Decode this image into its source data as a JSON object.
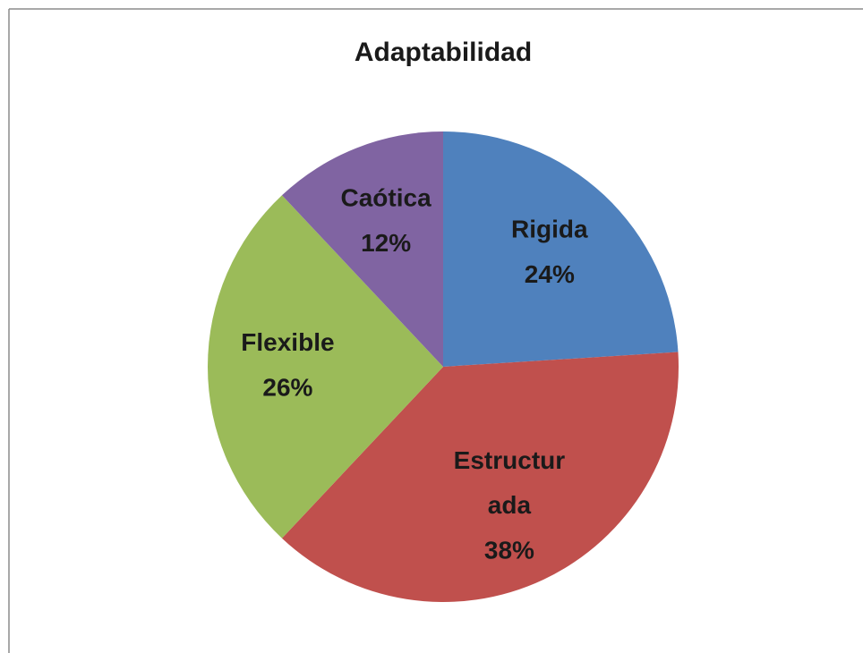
{
  "chart_data": {
    "type": "pie",
    "title": "Adaptabilidad",
    "categories": [
      "Rigida",
      "Estructurada",
      "Flexible",
      "Caótica"
    ],
    "values": [
      24,
      38,
      26,
      12
    ],
    "value_labels": [
      "24%",
      "38%",
      "26%",
      "12%"
    ],
    "colors": [
      "#4f81bd",
      "#c0504d",
      "#9bbb59",
      "#8064a2"
    ]
  }
}
